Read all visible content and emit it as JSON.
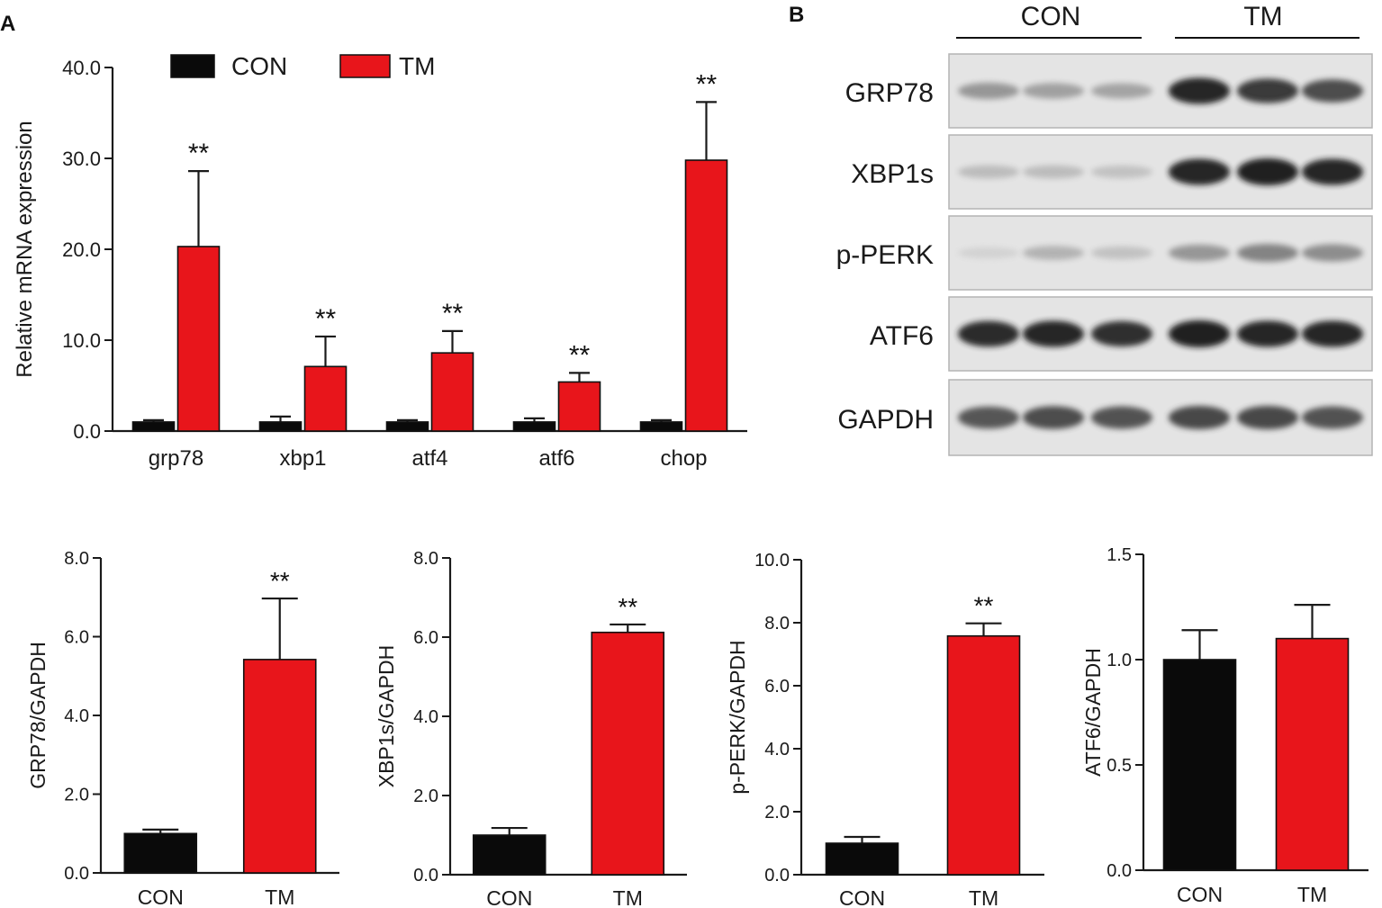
{
  "panel_labels": {
    "a": "A",
    "b": "B"
  },
  "colors": {
    "con": "#0a0a0a",
    "tm": "#e8151b",
    "axis": "#1a1a1a"
  },
  "chart_data": [
    {
      "id": "mrna",
      "type": "bar",
      "panel": "A",
      "title": "",
      "ylabel": "Relative  mRNA expression",
      "xlabel": "",
      "ylim": [
        0,
        40
      ],
      "yticks": [
        "0.0",
        "10.0",
        "20.0",
        "30.0",
        "40.0"
      ],
      "categories": [
        "grp78",
        "xbp1",
        "atf4",
        "atf6",
        "chop"
      ],
      "legend": {
        "placement": "top",
        "entries": [
          "CON",
          "TM"
        ]
      },
      "series": [
        {
          "name": "CON",
          "values": [
            1.0,
            1.0,
            1.0,
            1.0,
            1.0
          ],
          "errors": [
            0.2,
            0.6,
            0.2,
            0.4,
            0.2
          ]
        },
        {
          "name": "TM",
          "values": [
            20.3,
            7.1,
            8.6,
            5.4,
            29.8
          ],
          "errors": [
            8.3,
            3.3,
            2.4,
            1.0,
            6.4
          ]
        }
      ],
      "annotations": [
        "**",
        "**",
        "**",
        "**",
        "**"
      ]
    },
    {
      "id": "grp78",
      "type": "bar",
      "title": "",
      "ylabel": "GRP78/GAPDH",
      "ylim": [
        0,
        8
      ],
      "yticks": [
        "0.0",
        "2.0",
        "4.0",
        "6.0",
        "8.0"
      ],
      "categories": [
        "CON",
        "TM"
      ],
      "values": [
        1.0,
        5.42
      ],
      "errors": [
        0.1,
        1.55
      ],
      "annotations": [
        "",
        "**"
      ]
    },
    {
      "id": "xbp1s",
      "type": "bar",
      "title": "",
      "ylabel": "XBP1s/GAPDH",
      "ylim": [
        0,
        8
      ],
      "yticks": [
        "0.0",
        "2.0",
        "4.0",
        "6.0",
        "8.0"
      ],
      "categories": [
        "CON",
        "TM"
      ],
      "values": [
        1.0,
        6.12
      ],
      "errors": [
        0.18,
        0.2
      ],
      "annotations": [
        "",
        "**"
      ]
    },
    {
      "id": "pperk",
      "type": "bar",
      "title": "",
      "ylabel": "p-PERK/GAPDH",
      "ylim": [
        0,
        10
      ],
      "yticks": [
        "0.0",
        "2.0",
        "4.0",
        "6.0",
        "8.0",
        "10.0"
      ],
      "categories": [
        "CON",
        "TM"
      ],
      "values": [
        1.0,
        7.58
      ],
      "errors": [
        0.2,
        0.4
      ],
      "annotations": [
        "",
        "**"
      ]
    },
    {
      "id": "atf6",
      "type": "bar",
      "title": "",
      "ylabel": "ATF6/GAPDH",
      "ylim": [
        0,
        1.5
      ],
      "yticks": [
        "0.0",
        "0.5",
        "1.0",
        "1.5"
      ],
      "categories": [
        "CON",
        "TM"
      ],
      "values": [
        1.0,
        1.1
      ],
      "errors": [
        0.14,
        0.16
      ],
      "annotations": [
        "",
        ""
      ]
    }
  ],
  "western_blot": {
    "groups": [
      "CON",
      "TM"
    ],
    "rows": [
      {
        "label": "GRP78",
        "intensity": [
          0.35,
          0.3,
          0.28,
          0.95,
          0.85,
          0.75
        ]
      },
      {
        "label": "XBP1s",
        "intensity": [
          0.15,
          0.15,
          0.12,
          0.95,
          1.0,
          0.95
        ]
      },
      {
        "label": "p-PERK",
        "intensity": [
          0.03,
          0.2,
          0.12,
          0.35,
          0.45,
          0.4
        ]
      },
      {
        "label": "ATF6",
        "intensity": [
          0.92,
          0.95,
          0.9,
          1.0,
          0.95,
          0.95
        ]
      },
      {
        "label": "GAPDH",
        "intensity": [
          0.7,
          0.75,
          0.72,
          0.78,
          0.78,
          0.72
        ]
      }
    ]
  }
}
